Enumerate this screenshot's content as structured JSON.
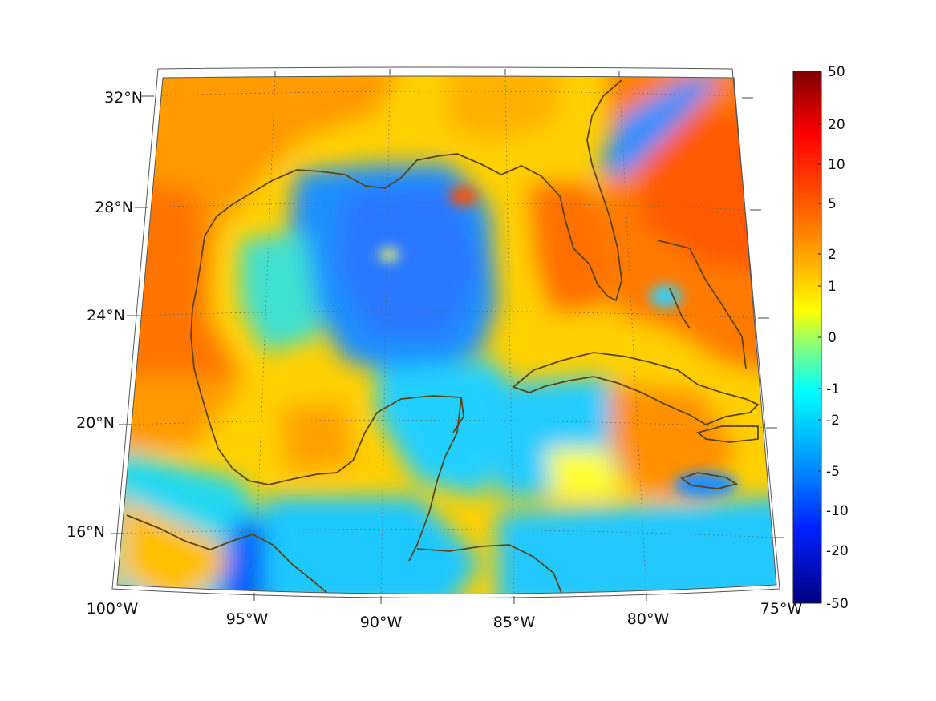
{
  "map": {
    "type": "map",
    "projection": "conic",
    "region": "Gulf of Mexico and Caribbean",
    "lon_range": [
      -100,
      -75
    ],
    "lat_range": [
      14,
      33
    ],
    "lon_ticks": [
      "100°W",
      "95°W",
      "90°W",
      "85°W",
      "80°W",
      "75°W"
    ],
    "lat_ticks": [
      "32°N",
      "28°N",
      "24°N",
      "20°N",
      "16°N"
    ],
    "grid": true,
    "coastline_color": "#5a4418"
  },
  "colorbar": {
    "colormap": "jet",
    "scale": "symmetric-log",
    "ticks": [
      "50",
      "20",
      "10",
      "5",
      "2",
      "1",
      "0",
      "-1",
      "-2",
      "-5",
      "-10",
      "-20",
      "-50"
    ],
    "range": [
      -50,
      50
    ]
  }
}
